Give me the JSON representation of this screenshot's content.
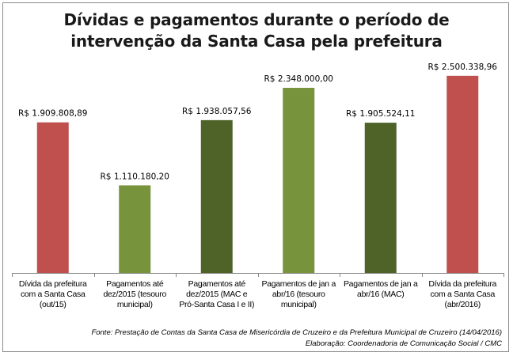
{
  "chart_data": {
    "type": "bar",
    "title": "Dívidas e pagamentos durante o período de intervenção da Santa Casa pela prefeitura",
    "title_lines": [
      "Dívidas e pagamentos durante o período de",
      "intervenção da Santa Casa pela prefeitura"
    ],
    "categories": [
      [
        "Dívida da prefeitura",
        "com a Santa Casa",
        "(out/15)"
      ],
      [
        "Pagamentos até",
        "dez/2015 (tesouro",
        "municipal)"
      ],
      [
        "Pagamentos até",
        "dez/2015 (MAC e",
        "Pró-Santa Casa I e II)"
      ],
      [
        "Pagamentos de jan a",
        "abr/16 (tesouro",
        "municipal)"
      ],
      [
        "Pagamentos de jan a",
        "abr/16 (MAC)"
      ],
      [
        "Dívida da prefeitura",
        "com a Santa Casa",
        "(abr/2016)"
      ]
    ],
    "values": [
      1909808.89,
      1110180.2,
      1938057.56,
      2348000.0,
      1905524.11,
      2500338.96
    ],
    "data_labels": [
      "R$ 1.909.808,89",
      "R$ 1.110.180,20",
      "R$ 1.938.057,56",
      "R$ 2.348.000,00",
      "R$ 1.905.524,11",
      "R$ 2.500.338,96"
    ],
    "bar_colors": [
      "#c0504d",
      "#77933c",
      "#4f6228",
      "#77933c",
      "#4f6228",
      "#c0504d"
    ],
    "ylim": [
      0,
      2900000
    ],
    "grid": false,
    "legend": "none"
  },
  "footer": {
    "source": "Fonte: Prestação de Contas da Santa Casa de Misericórdia de Cruzeiro e da Prefeitura Municipal de Cruzeiro (14/04/2016)",
    "credit": "Elaboração: Coordenadoria de Comunicação Social / CMC"
  }
}
